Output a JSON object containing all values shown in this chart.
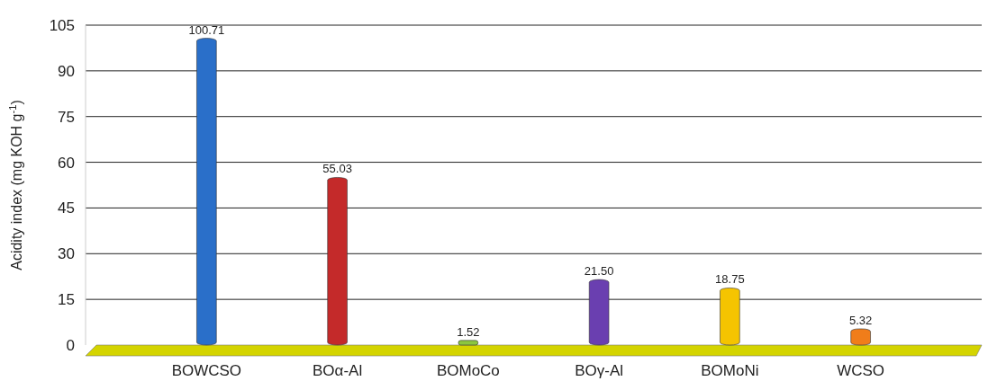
{
  "chart_data": {
    "type": "bar",
    "ylabel": "Acidity index (mg KOH g$^{-1}$)",
    "categories": [
      "BOWCSO",
      "BOα-Al",
      "BOMoCo",
      "BOγ-Al",
      "BOMoNi",
      "WCSO"
    ],
    "values": [
      100.71,
      55.03,
      1.52,
      21.5,
      18.75,
      5.32
    ],
    "value_labels": [
      "100.71",
      "55.03",
      "1.52",
      "21.50",
      "18.75",
      "5.32"
    ],
    "colors": [
      "#2a6fc9",
      "#c42a2a",
      "#8cc63f",
      "#6a3fb0",
      "#f5c400",
      "#f07d1a"
    ],
    "ylim": [
      0,
      105
    ],
    "yticks": [
      0,
      15,
      30,
      45,
      60,
      75,
      90,
      105
    ],
    "grid": "y"
  }
}
